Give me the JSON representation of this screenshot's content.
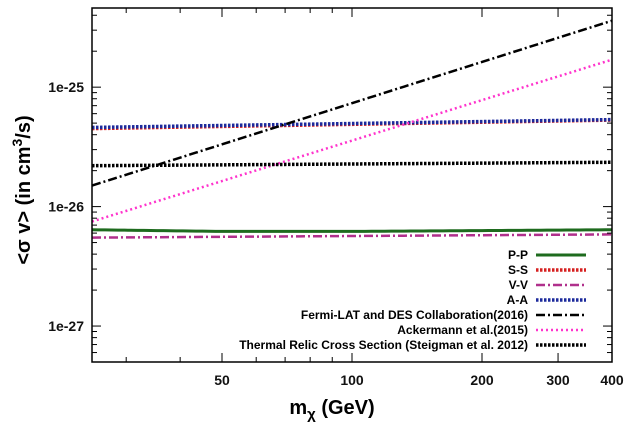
{
  "chart_data": {
    "type": "line",
    "xlabel": {
      "base": "m",
      "sub": "χ",
      "rest": " (GeV)"
    },
    "ylabel": {
      "pre": "<σ v> (in cm",
      "sup": "3",
      "post": "/s)"
    },
    "x_scale": "log",
    "y_scale": "log",
    "xlim": [
      25,
      400
    ],
    "ylim": [
      5e-28,
      4.6e-25
    ],
    "x_ticks": [
      {
        "value": 50,
        "label": "50"
      },
      {
        "value": 100,
        "label": "100"
      },
      {
        "value": 200,
        "label": "200"
      },
      {
        "value": 300,
        "label": "300"
      },
      {
        "value": 400,
        "label": "400"
      }
    ],
    "y_ticks": [
      {
        "value": 1e-27,
        "label": "1e-27"
      },
      {
        "value": 1e-26,
        "label": "1e-26"
      },
      {
        "value": 1e-25,
        "label": "1e-25"
      }
    ],
    "grid": false,
    "legend_position": "bottom-right",
    "series": [
      {
        "key": "pp",
        "name": "P-P",
        "color": "#1e6b1e",
        "style": "solid",
        "x": [
          25,
          50,
          100,
          200,
          400
        ],
        "y": [
          6.4e-27,
          6.2e-27,
          6.2e-27,
          6.3e-27,
          6.4e-27
        ]
      },
      {
        "key": "ss",
        "name": "S-S",
        "color": "#d62020",
        "style": "dense-dot",
        "x": [
          25,
          400
        ],
        "y": [
          4.5e-26,
          5.3e-26
        ]
      },
      {
        "key": "vv",
        "name": "V-V",
        "color": "#b0308c",
        "style": "dash-dot",
        "x": [
          25,
          400
        ],
        "y": [
          5.5e-27,
          5.85e-27
        ]
      },
      {
        "key": "aa",
        "name": "A-A",
        "color": "#1c2a9c",
        "style": "dense-dot",
        "x": [
          25,
          400
        ],
        "y": [
          4.6e-26,
          5.35e-26
        ]
      },
      {
        "key": "fermi",
        "name": "Fermi-LAT and DES Collaboration(2016)",
        "color": "#000000",
        "style": "dash-dot",
        "x": [
          25,
          400
        ],
        "y": [
          1.5e-26,
          3.6e-25
        ]
      },
      {
        "key": "ack",
        "name": "Ackermann et al.(2015)",
        "color": "#ff33cc",
        "style": "dot",
        "x": [
          25,
          400
        ],
        "y": [
          7.5e-27,
          1.7e-25
        ]
      },
      {
        "key": "thermal",
        "name": "Thermal Relic Cross Section (Steigman et al. 2012)",
        "color": "#000000",
        "style": "dense-dot",
        "x": [
          25,
          400
        ],
        "y": [
          2.2e-26,
          2.35e-26
        ]
      }
    ]
  }
}
